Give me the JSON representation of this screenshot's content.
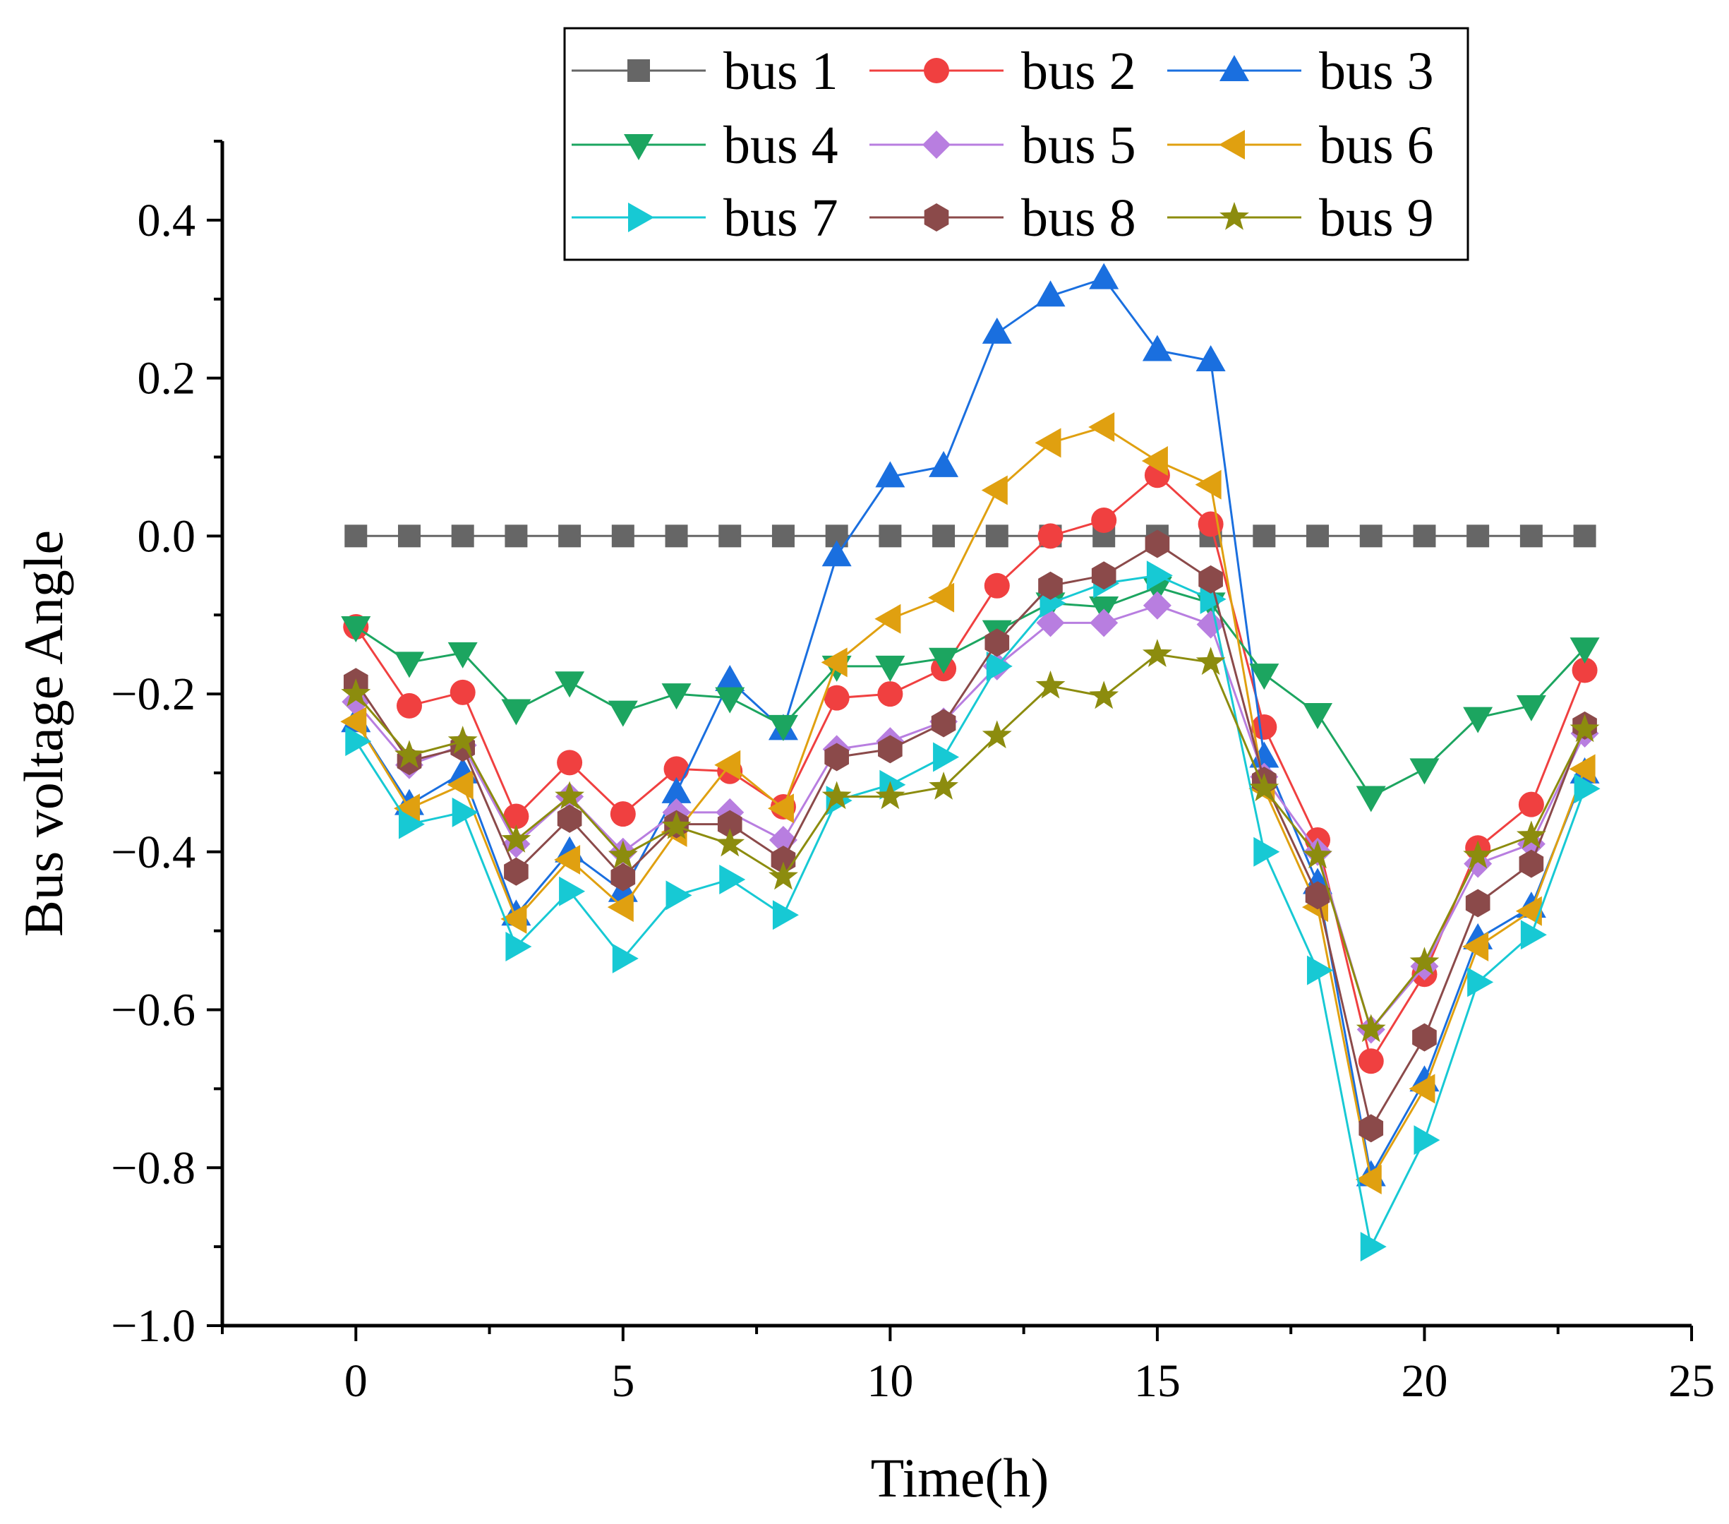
{
  "chart_data": {
    "type": "line",
    "title": "",
    "xlabel": "Time(h)",
    "ylabel": "Bus voltage Angle",
    "xlim": [
      -2.5,
      25
    ],
    "ylim": [
      -1.0,
      0.5
    ],
    "xticks": [
      0,
      5,
      10,
      15,
      20,
      25
    ],
    "yticks": [
      -1.0,
      -0.8,
      -0.6,
      -0.4,
      -0.2,
      0.0,
      0.2,
      0.4
    ],
    "xtick_labels": [
      "0",
      "5",
      "10",
      "15",
      "20",
      "25"
    ],
    "ytick_labels": [
      "−1.0",
      "−0.8",
      "−0.6",
      "−0.4",
      "−0.2",
      "0.0",
      "0.2",
      "0.4"
    ],
    "grid": false,
    "legend_position": "top",
    "x": [
      0,
      1,
      2,
      3,
      4,
      5,
      6,
      7,
      8,
      9,
      10,
      11,
      12,
      13,
      14,
      15,
      16,
      17,
      18,
      19,
      20,
      21,
      22,
      23
    ],
    "series": [
      {
        "name": "bus 1",
        "color": "#666666",
        "marker": "square",
        "values": [
          0,
          0,
          0,
          0,
          0,
          0,
          0,
          0,
          0,
          0,
          0,
          0,
          0,
          0,
          0,
          0,
          0,
          0,
          0,
          0,
          0,
          0,
          0,
          0
        ]
      },
      {
        "name": "bus 2",
        "color": "#f04040",
        "marker": "circle",
        "values": [
          -0.115,
          -0.215,
          -0.198,
          -0.355,
          -0.287,
          -0.352,
          -0.295,
          -0.298,
          -0.343,
          -0.205,
          -0.2,
          -0.168,
          -0.063,
          0.0,
          0.02,
          0.077,
          0.015,
          -0.242,
          -0.385,
          -0.665,
          -0.555,
          -0.395,
          -0.34,
          -0.17
        ]
      },
      {
        "name": "bus 3",
        "color": "#1a6fdf",
        "marker": "triangle-up",
        "values": [
          -0.235,
          -0.34,
          -0.3,
          -0.48,
          -0.4,
          -0.45,
          -0.325,
          -0.183,
          -0.245,
          -0.025,
          0.075,
          0.088,
          0.257,
          0.304,
          0.326,
          0.235,
          0.222,
          -0.28,
          -0.44,
          -0.81,
          -0.69,
          -0.51,
          -0.47,
          -0.3
        ]
      },
      {
        "name": "bus 4",
        "color": "#1ca560",
        "marker": "triangle-down",
        "values": [
          -0.115,
          -0.16,
          -0.148,
          -0.22,
          -0.185,
          -0.222,
          -0.2,
          -0.205,
          -0.24,
          -0.165,
          -0.165,
          -0.155,
          -0.12,
          -0.085,
          -0.09,
          -0.065,
          -0.085,
          -0.175,
          -0.225,
          -0.33,
          -0.295,
          -0.23,
          -0.215,
          -0.142
        ]
      },
      {
        "name": "bus 5",
        "color": "#b87ee0",
        "marker": "diamond",
        "values": [
          -0.21,
          -0.29,
          -0.265,
          -0.39,
          -0.33,
          -0.4,
          -0.35,
          -0.35,
          -0.385,
          -0.27,
          -0.26,
          -0.235,
          -0.165,
          -0.11,
          -0.11,
          -0.088,
          -0.112,
          -0.305,
          -0.4,
          -0.625,
          -0.545,
          -0.415,
          -0.39,
          -0.25
        ]
      },
      {
        "name": "bus 6",
        "color": "#e0a010",
        "marker": "triangle-left",
        "values": [
          -0.235,
          -0.345,
          -0.315,
          -0.485,
          -0.41,
          -0.47,
          -0.375,
          -0.29,
          -0.345,
          -0.16,
          -0.105,
          -0.078,
          0.058,
          0.118,
          0.138,
          0.095,
          0.065,
          -0.32,
          -0.47,
          -0.815,
          -0.7,
          -0.52,
          -0.475,
          -0.295
        ]
      },
      {
        "name": "bus 7",
        "color": "#17c9d4",
        "marker": "triangle-right",
        "values": [
          -0.26,
          -0.365,
          -0.35,
          -0.52,
          -0.45,
          -0.535,
          -0.455,
          -0.435,
          -0.48,
          -0.335,
          -0.315,
          -0.28,
          -0.165,
          -0.085,
          -0.06,
          -0.05,
          -0.08,
          -0.4,
          -0.55,
          -0.9,
          -0.765,
          -0.565,
          -0.505,
          -0.32
        ]
      },
      {
        "name": "bus 8",
        "color": "#8b4a4a",
        "marker": "hexagon",
        "values": [
          -0.185,
          -0.285,
          -0.268,
          -0.425,
          -0.358,
          -0.432,
          -0.365,
          -0.365,
          -0.41,
          -0.28,
          -0.27,
          -0.237,
          -0.135,
          -0.063,
          -0.05,
          -0.01,
          -0.055,
          -0.31,
          -0.455,
          -0.75,
          -0.635,
          -0.465,
          -0.415,
          -0.24
        ]
      },
      {
        "name": "bus 9",
        "color": "#8c8c0e",
        "marker": "star",
        "values": [
          -0.2,
          -0.278,
          -0.26,
          -0.385,
          -0.33,
          -0.405,
          -0.368,
          -0.39,
          -0.432,
          -0.33,
          -0.33,
          -0.318,
          -0.253,
          -0.19,
          -0.203,
          -0.15,
          -0.16,
          -0.32,
          -0.405,
          -0.625,
          -0.54,
          -0.405,
          -0.38,
          -0.245
        ]
      }
    ]
  }
}
